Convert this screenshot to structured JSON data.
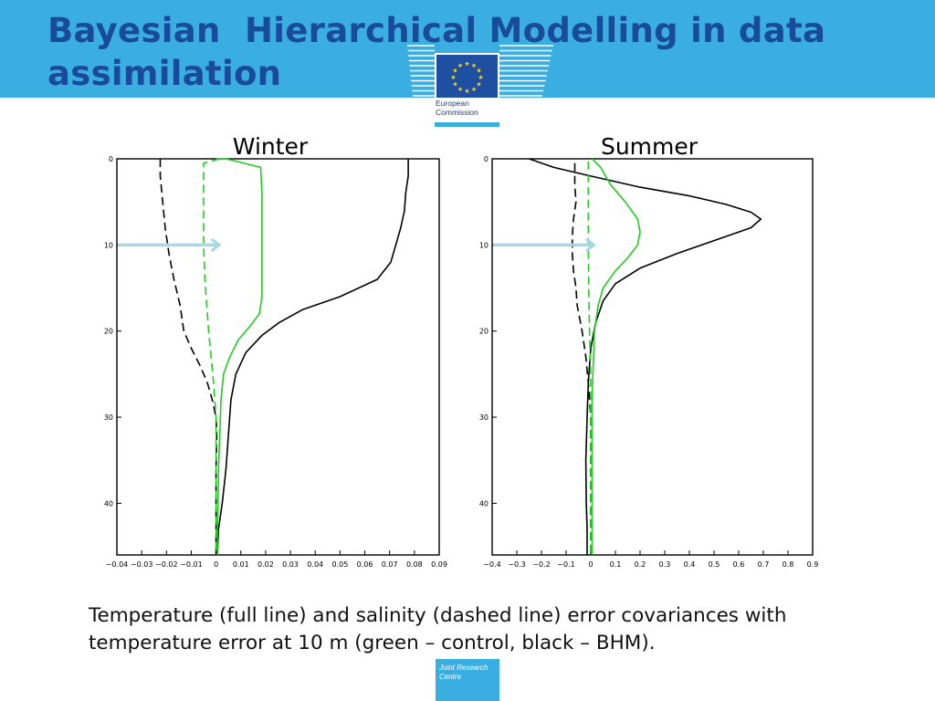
{
  "slide": {
    "title": "Bayesian  Hierarchical Modelling in data assimilation",
    "caption": "Temperature (full line) and salinity (dashed line) error covariances with temperature error at 10 m (green – control, black – BHM).",
    "logo_top_text": "European Commission",
    "logo_bottom_text": "Joint Research Centre"
  },
  "colors": {
    "header": "#3aaee0",
    "title": "#1a4a9a",
    "control": "#22cc22",
    "bhm": "#000000",
    "arrow": "#a8d8e4"
  },
  "chart_data": [
    {
      "type": "line",
      "title": "Winter",
      "xlim": [
        -0.04,
        0.09
      ],
      "ylim": [
        46,
        0
      ],
      "x_ticks": [
        -0.04,
        -0.03,
        -0.02,
        -0.01,
        0,
        0.01,
        0.02,
        0.03,
        0.04,
        0.05,
        0.06,
        0.07,
        0.08,
        0.09
      ],
      "x_tick_labels": [
        "−0.04",
        "−0.03",
        "−0.02",
        "−0.01",
        "0",
        "0.01",
        "0.02",
        "0.03",
        "0.04",
        "0.05",
        "0.06",
        "0.07",
        "0.08",
        "0.09"
      ],
      "y_ticks": [
        0,
        10,
        20,
        30,
        40
      ],
      "y_tick_labels": [
        "0",
        "10",
        "20",
        "30",
        "40"
      ],
      "arrow_depth": 10,
      "series": [
        {
          "color": "#000000",
          "dash": false,
          "points": [
            [
              0.0775,
              0
            ],
            [
              0.0775,
              2
            ],
            [
              0.0765,
              4
            ],
            [
              0.076,
              6
            ],
            [
              0.0745,
              8
            ],
            [
              0.0725,
              10
            ],
            [
              0.0705,
              12
            ],
            [
              0.065,
              14
            ],
            [
              0.05,
              16
            ],
            [
              0.035,
              17.5
            ],
            [
              0.0255,
              19
            ],
            [
              0.0185,
              20.5
            ],
            [
              0.012,
              22.5
            ],
            [
              0.008,
              25
            ],
            [
              0.006,
              28
            ],
            [
              0.005,
              32
            ],
            [
              0.004,
              36
            ],
            [
              0.0025,
              40
            ],
            [
              0.001,
              43
            ],
            [
              0.0005,
              46
            ]
          ]
        },
        {
          "color": "#000000",
          "dash": true,
          "points": [
            [
              -0.0225,
              0
            ],
            [
              -0.0225,
              2
            ],
            [
              -0.0215,
              5
            ],
            [
              -0.0205,
              8
            ],
            [
              -0.019,
              11
            ],
            [
              -0.017,
              14
            ],
            [
              -0.0145,
              17
            ],
            [
              -0.013,
              20
            ],
            [
              -0.01,
              22
            ],
            [
              -0.0065,
              24
            ],
            [
              -0.0035,
              26
            ],
            [
              -0.0015,
              28
            ],
            [
              0,
              30
            ],
            [
              0.0003,
              32
            ],
            [
              0,
              36
            ],
            [
              0,
              40
            ],
            [
              0,
              46
            ]
          ]
        },
        {
          "color": "#22cc22",
          "dash": false,
          "points": [
            [
              0,
              0
            ],
            [
              0.004,
              0
            ],
            [
              0.018,
              1
            ],
            [
              0.0185,
              4
            ],
            [
              0.0185,
              8
            ],
            [
              0.0185,
              12
            ],
            [
              0.0185,
              16
            ],
            [
              0.0175,
              18
            ],
            [
              0.0135,
              19.5
            ],
            [
              0.009,
              21
            ],
            [
              0.0055,
              23
            ],
            [
              0.003,
              25
            ],
            [
              0.002,
              28
            ],
            [
              0.0015,
              32
            ],
            [
              0.001,
              36
            ],
            [
              0.0008,
              40
            ],
            [
              0.0005,
              43
            ],
            [
              0.0005,
              46
            ]
          ]
        },
        {
          "color": "#22cc22",
          "dash": true,
          "points": [
            [
              0.0015,
              0
            ],
            [
              -0.005,
              0.5
            ],
            [
              -0.005,
              4
            ],
            [
              -0.005,
              8
            ],
            [
              -0.005,
              10
            ],
            [
              -0.0045,
              14
            ],
            [
              -0.003,
              20
            ],
            [
              -0.001,
              26
            ],
            [
              0,
              30
            ],
            [
              0,
              36
            ],
            [
              0,
              40
            ],
            [
              0,
              46
            ]
          ]
        }
      ]
    },
    {
      "type": "line",
      "title": "Summer",
      "xlim": [
        -0.4,
        0.9
      ],
      "ylim": [
        46,
        0
      ],
      "x_ticks": [
        -0.4,
        -0.3,
        -0.2,
        -0.1,
        0,
        0.1,
        0.2,
        0.3,
        0.4,
        0.5,
        0.6,
        0.7,
        0.8,
        0.9
      ],
      "x_tick_labels": [
        "−0.4",
        "−0.3",
        "−0.2",
        "−0.1",
        "0",
        "0.1",
        "0.2",
        "0.3",
        "0.4",
        "0.5",
        "0.6",
        "0.7",
        "0.8",
        "0.9"
      ],
      "y_ticks": [
        0,
        10,
        20,
        30,
        40
      ],
      "y_tick_labels": [
        "0",
        "10",
        "20",
        "30",
        "40"
      ],
      "arrow_depth": 10,
      "series": [
        {
          "color": "#000000",
          "dash": false,
          "points": [
            [
              -0.25,
              0
            ],
            [
              -0.15,
              1
            ],
            [
              0,
              2
            ],
            [
              0.2,
              3.3
            ],
            [
              0.4,
              4.3
            ],
            [
              0.55,
              5.3
            ],
            [
              0.65,
              6.2
            ],
            [
              0.69,
              7
            ],
            [
              0.65,
              8
            ],
            [
              0.5,
              9.5
            ],
            [
              0.35,
              11
            ],
            [
              0.2,
              12.7
            ],
            [
              0.1,
              14.5
            ],
            [
              0.05,
              16.5
            ],
            [
              0.02,
              19
            ],
            [
              0,
              22
            ],
            [
              -0.01,
              26
            ],
            [
              -0.015,
              30
            ],
            [
              -0.02,
              35
            ],
            [
              -0.018,
              40
            ],
            [
              -0.015,
              43
            ],
            [
              -0.015,
              46
            ]
          ]
        },
        {
          "color": "#000000",
          "dash": true,
          "points": [
            [
              -0.065,
              0.5
            ],
            [
              -0.065,
              3
            ],
            [
              -0.06,
              5
            ],
            [
              -0.07,
              7
            ],
            [
              -0.075,
              9
            ],
            [
              -0.075,
              11
            ],
            [
              -0.07,
              13
            ],
            [
              -0.06,
              15
            ],
            [
              -0.055,
              17
            ],
            [
              -0.035,
              20
            ],
            [
              -0.02,
              23
            ],
            [
              -0.01,
              26
            ],
            [
              0,
              30
            ],
            [
              0,
              40
            ],
            [
              0,
              46
            ]
          ]
        },
        {
          "color": "#22cc22",
          "dash": false,
          "points": [
            [
              0.005,
              0
            ],
            [
              0.04,
              1
            ],
            [
              0.08,
              3
            ],
            [
              0.14,
              5
            ],
            [
              0.19,
              7
            ],
            [
              0.2,
              8.5
            ],
            [
              0.19,
              10
            ],
            [
              0.15,
              11.5
            ],
            [
              0.1,
              13
            ],
            [
              0.05,
              15
            ],
            [
              0.03,
              17
            ],
            [
              0.015,
              20
            ],
            [
              0.01,
              24
            ],
            [
              0.005,
              28
            ],
            [
              0.005,
              34
            ],
            [
              0.005,
              40
            ],
            [
              0.005,
              46
            ]
          ]
        },
        {
          "color": "#22cc22",
          "dash": true,
          "points": [
            [
              -0.01,
              0.3
            ],
            [
              -0.01,
              3
            ],
            [
              -0.01,
              6
            ],
            [
              -0.01,
              10
            ],
            [
              -0.008,
              15
            ],
            [
              -0.005,
              20
            ],
            [
              0,
              25
            ],
            [
              0,
              30
            ],
            [
              0,
              40
            ],
            [
              0,
              46
            ]
          ]
        }
      ]
    }
  ]
}
